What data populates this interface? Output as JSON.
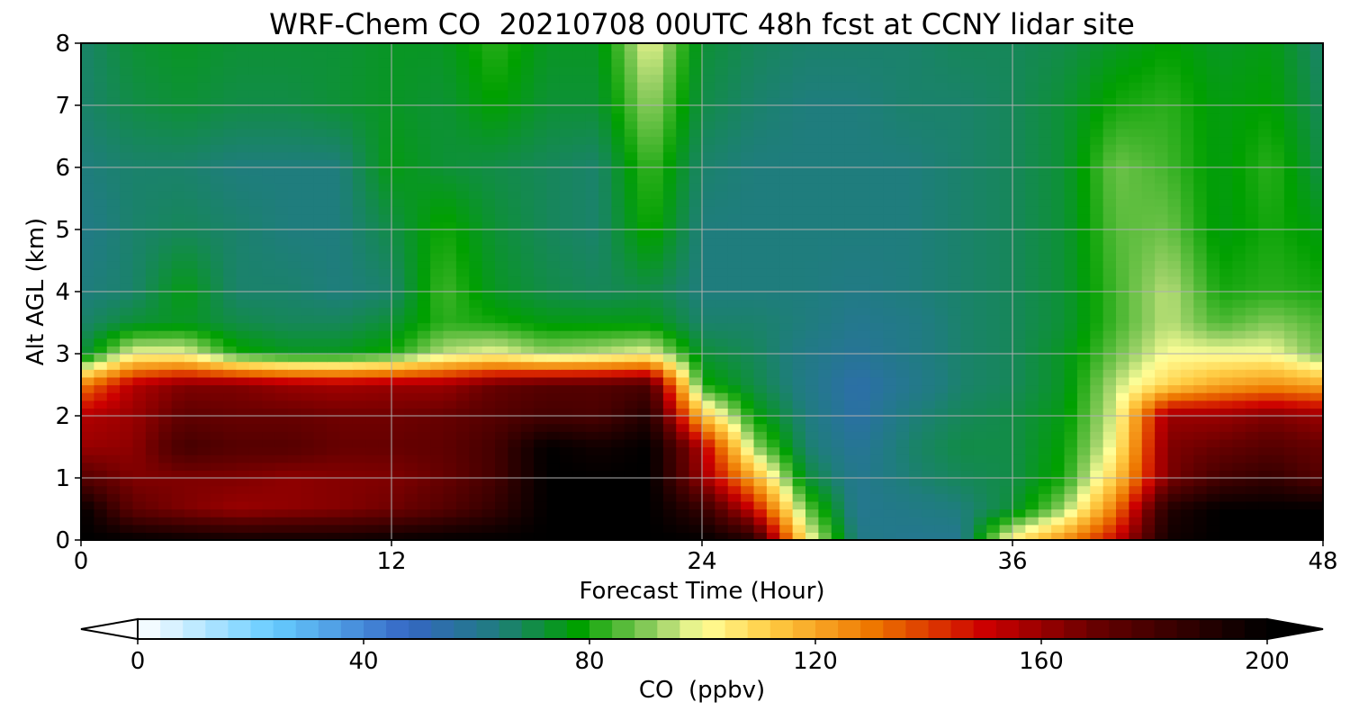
{
  "chart_data": {
    "type": "heatmap",
    "title": "WRF-Chem CO  20210708 00UTC 48h fcst at CCNY lidar site",
    "xlabel": "Forecast Time (Hour)",
    "ylabel": "Alt AGL (km)",
    "xlim": [
      0,
      48
    ],
    "ylim": [
      0,
      8
    ],
    "xticks": [
      0,
      12,
      24,
      36,
      48
    ],
    "yticks": [
      0,
      1,
      2,
      3,
      4,
      5,
      6,
      7,
      8
    ],
    "grid": true,
    "x": [
      0,
      2,
      4,
      6,
      8,
      10,
      12,
      14,
      16,
      18,
      20,
      22,
      24,
      26,
      28,
      30,
      32,
      34,
      36,
      38,
      40,
      42,
      44,
      46,
      48
    ],
    "y": [
      0,
      0.5,
      1,
      1.5,
      2,
      2.5,
      3,
      3.5,
      4,
      5,
      6,
      7,
      8
    ],
    "z": [
      [
        200,
        200,
        198,
        196,
        196,
        196,
        198,
        200,
        200,
        200,
        200,
        200,
        200,
        190,
        105,
        62,
        60,
        60,
        105,
        125,
        150,
        195,
        200,
        200,
        200
      ],
      [
        200,
        172,
        165,
        160,
        162,
        164,
        168,
        175,
        185,
        200,
        200,
        200,
        185,
        150,
        88,
        60,
        62,
        64,
        72,
        92,
        130,
        190,
        200,
        200,
        200
      ],
      [
        175,
        165,
        165,
        165,
        162,
        164,
        165,
        170,
        180,
        200,
        200,
        200,
        160,
        120,
        72,
        60,
        65,
        68,
        70,
        80,
        112,
        165,
        180,
        185,
        175
      ],
      [
        160,
        162,
        180,
        175,
        175,
        170,
        170,
        172,
        180,
        200,
        195,
        200,
        155,
        92,
        66,
        58,
        66,
        70,
        70,
        78,
        102,
        165,
        170,
        175,
        170
      ],
      [
        155,
        160,
        172,
        170,
        170,
        168,
        168,
        170,
        175,
        180,
        178,
        190,
        115,
        78,
        64,
        55,
        64,
        68,
        70,
        76,
        98,
        160,
        160,
        165,
        160
      ],
      [
        128,
        155,
        165,
        165,
        160,
        158,
        160,
        160,
        170,
        175,
        175,
        178,
        80,
        70,
        62,
        54,
        60,
        66,
        68,
        74,
        95,
        110,
        120,
        125,
        120
      ],
      [
        70,
        100,
        100,
        80,
        75,
        75,
        80,
        95,
        100,
        92,
        95,
        100,
        72,
        68,
        62,
        58,
        62,
        66,
        68,
        74,
        88,
        100,
        100,
        100,
        88
      ],
      [
        66,
        72,
        74,
        70,
        68,
        68,
        72,
        82,
        80,
        76,
        76,
        76,
        66,
        66,
        64,
        60,
        62,
        66,
        68,
        72,
        84,
        95,
        85,
        90,
        85
      ],
      [
        64,
        66,
        76,
        66,
        66,
        64,
        66,
        84,
        74,
        70,
        68,
        70,
        64,
        64,
        64,
        62,
        64,
        66,
        68,
        72,
        84,
        95,
        80,
        82,
        80
      ],
      [
        62,
        66,
        68,
        66,
        64,
        64,
        70,
        80,
        72,
        68,
        66,
        80,
        64,
        64,
        64,
        64,
        64,
        66,
        68,
        72,
        86,
        88,
        76,
        80,
        76
      ],
      [
        64,
        66,
        66,
        64,
        64,
        64,
        76,
        72,
        70,
        68,
        66,
        84,
        66,
        64,
        64,
        64,
        64,
        66,
        68,
        72,
        88,
        84,
        76,
        82,
        70
      ],
      [
        66,
        70,
        72,
        70,
        70,
        72,
        74,
        72,
        78,
        72,
        72,
        92,
        70,
        66,
        64,
        64,
        66,
        66,
        68,
        72,
        80,
        82,
        76,
        78,
        68
      ],
      [
        66,
        72,
        74,
        72,
        72,
        72,
        74,
        74,
        82,
        74,
        74,
        100,
        72,
        68,
        66,
        66,
        66,
        68,
        68,
        70,
        74,
        78,
        74,
        76,
        66
      ]
    ],
    "colorbar": {
      "label": "CO  (ppbv)",
      "min": 0,
      "max": 200,
      "ticks": [
        0,
        40,
        80,
        120,
        160,
        200
      ],
      "extend": "both",
      "stops": [
        {
          "v": 0,
          "color": "#ffffff"
        },
        {
          "v": 24,
          "color": "#66ccff"
        },
        {
          "v": 48,
          "color": "#3566c4"
        },
        {
          "v": 64,
          "color": "#1f7d7d"
        },
        {
          "v": 78,
          "color": "#00a000"
        },
        {
          "v": 92,
          "color": "#99d066"
        },
        {
          "v": 100,
          "color": "#ffff99"
        },
        {
          "v": 112,
          "color": "#ffcc44"
        },
        {
          "v": 130,
          "color": "#ee7700"
        },
        {
          "v": 150,
          "color": "#cc0000"
        },
        {
          "v": 170,
          "color": "#660000"
        },
        {
          "v": 200,
          "color": "#000000"
        }
      ]
    }
  }
}
